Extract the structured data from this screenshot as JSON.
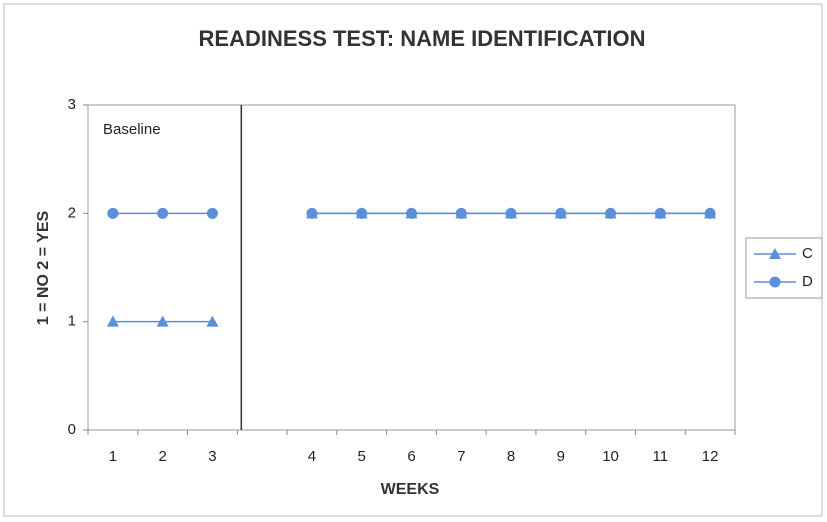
{
  "chart_data": {
    "type": "line",
    "title": "READINESS TEST:  NAME IDENTIFICATION",
    "x_label": "WEEKS",
    "y_label": "1 = NO 2 = YES",
    "annotation": "Baseline",
    "categories": [
      "1",
      "2",
      "3",
      null,
      "4",
      "5",
      "6",
      "7",
      "8",
      "9",
      "10",
      "11",
      "12"
    ],
    "series": [
      {
        "name": "C",
        "color": "#5b8fd9",
        "marker": "triangle",
        "values": [
          1,
          1,
          1,
          null,
          2,
          2,
          2,
          2,
          2,
          2,
          2,
          2,
          2
        ]
      },
      {
        "name": "D",
        "color": "#5b8fd9",
        "marker": "circle",
        "values": [
          2,
          2,
          2,
          null,
          2,
          2,
          2,
          2,
          2,
          2,
          2,
          2,
          2
        ]
      }
    ],
    "ylim": [
      0,
      3
    ],
    "yticks": [
      0,
      1,
      2,
      3
    ],
    "grid": false,
    "legend": "right"
  }
}
